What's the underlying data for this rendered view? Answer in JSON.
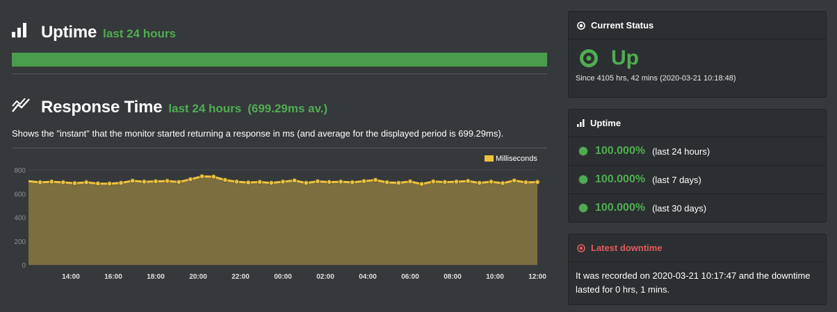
{
  "uptime_section": {
    "title": "Uptime",
    "subtitle": "last 24 hours",
    "uptime_fraction": 1.0,
    "bar_color": "#4a9d4c"
  },
  "response_section": {
    "title": "Response Time",
    "subtitle": "last 24 hours",
    "average": "(699.29ms av.)",
    "description": "Shows the \"instant\" that the monitor started returning a response in ms (and average for the displayed period is 699.29ms)."
  },
  "chart_data": {
    "type": "area",
    "legend": [
      "Milliseconds"
    ],
    "legend_position": "top-right",
    "series": [
      {
        "name": "Milliseconds",
        "color": "#f0c23b",
        "fill": "#7d6e40",
        "values": [
          705,
          695,
          700,
          695,
          688,
          695,
          685,
          684,
          690,
          708,
          700,
          703,
          706,
          698,
          720,
          745,
          742,
          715,
          700,
          693,
          698,
          690,
          700,
          710,
          690,
          703,
          697,
          700,
          695,
          705,
          715,
          695,
          690,
          702,
          680,
          702,
          697,
          700,
          706,
          690,
          700,
          688,
          710,
          695,
          697
        ]
      }
    ],
    "x_tick_labels": [
      "14:00",
      "16:00",
      "18:00",
      "20:00",
      "22:00",
      "00:00",
      "02:00",
      "04:00",
      "06:00",
      "08:00",
      "10:00",
      "12:00"
    ],
    "y_tick_labels": [
      "0",
      "200",
      "400",
      "600",
      "800"
    ],
    "ylim": [
      0,
      800
    ],
    "grid": true,
    "xlabel": "",
    "ylabel": "",
    "title": ""
  },
  "status_panel": {
    "title": "Current Status",
    "status": "Up",
    "since": "Since 4105 hrs, 42 mins (2020-03-21 10:18:48)",
    "status_color": "#4fad51"
  },
  "uptime_panel": {
    "title": "Uptime",
    "rows": [
      {
        "pct": "100.000%",
        "period": "(last 24 hours)"
      },
      {
        "pct": "100.000%",
        "period": "(last 7 days)"
      },
      {
        "pct": "100.000%",
        "period": "(last 30 days)"
      }
    ]
  },
  "downtime_panel": {
    "title": "Latest downtime",
    "text": "It was recorded on 2020-03-21 10:17:47 and the downtime lasted for 0 hrs, 1 mins.",
    "title_color": "#e35c5c"
  }
}
